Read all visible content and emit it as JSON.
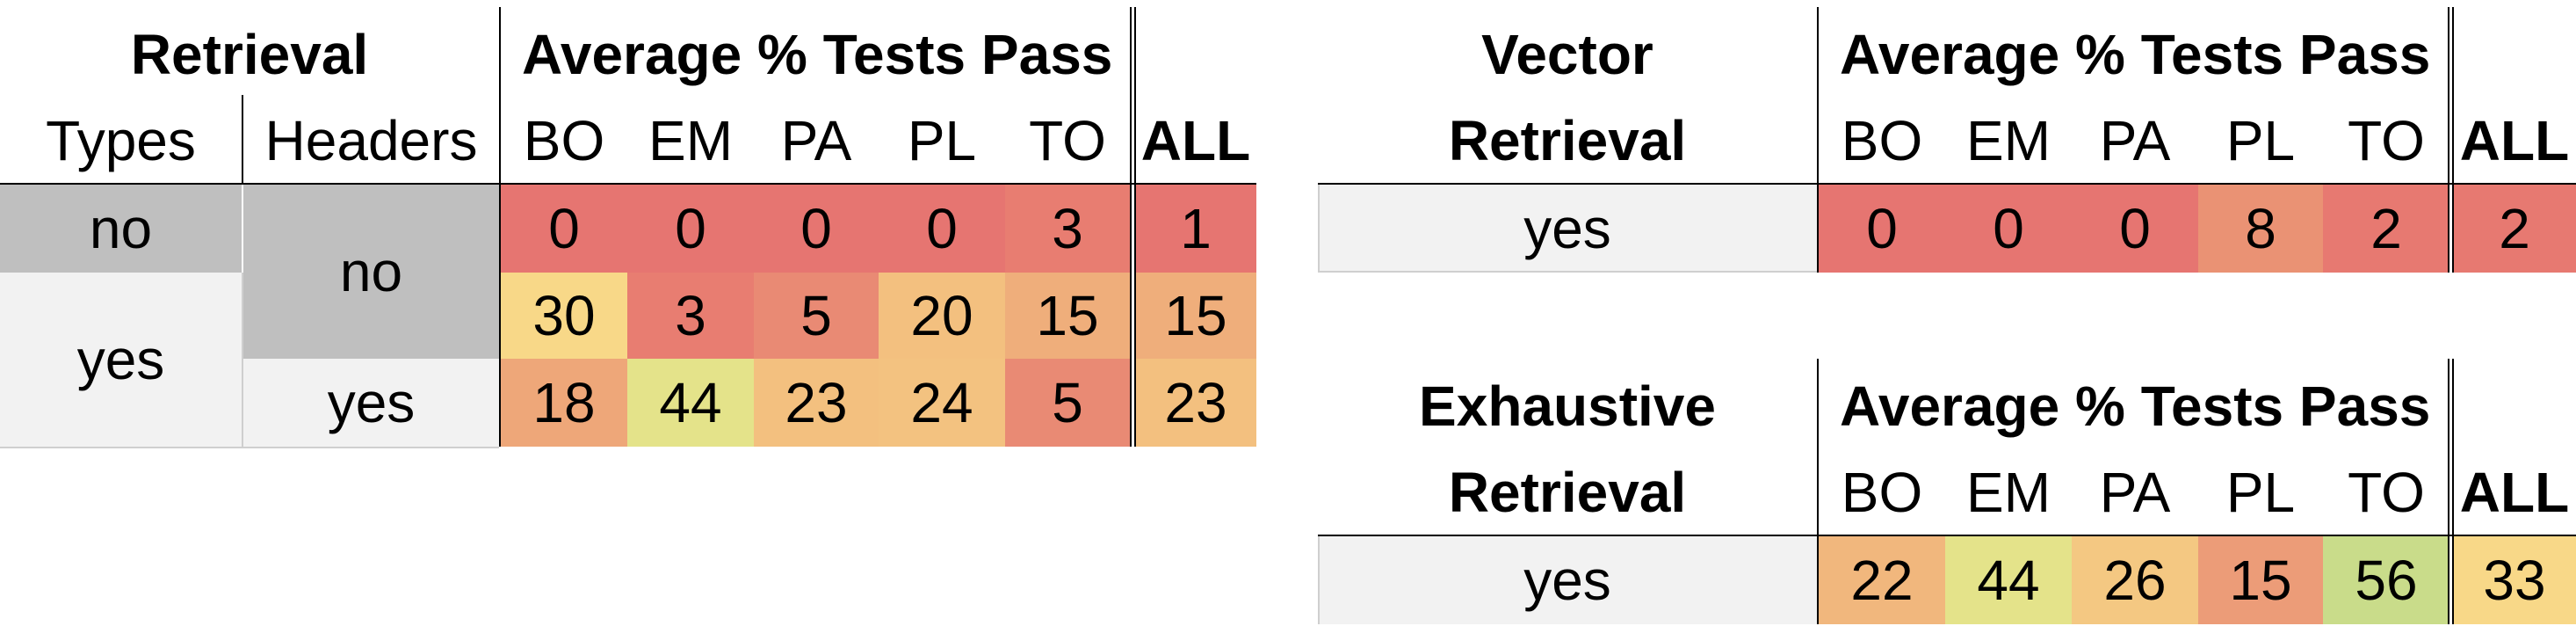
{
  "table1": {
    "group_header": "Retrieval",
    "metric_header": "Average % Tests Pass",
    "col_types": "Types",
    "col_headers": "Headers",
    "columns": [
      "BO",
      "EM",
      "PA",
      "PL",
      "TO"
    ],
    "col_all": "ALL",
    "rows": [
      {
        "types": "no",
        "headers": "no",
        "values": [
          "0",
          "0",
          "0",
          "0",
          "3"
        ],
        "all": "1"
      },
      {
        "types": "yes",
        "headers": "",
        "values": [
          "30",
          "3",
          "5",
          "20",
          "15"
        ],
        "all": "15"
      },
      {
        "types": "",
        "headers": "yes",
        "values": [
          "18",
          "44",
          "23",
          "24",
          "5"
        ],
        "all": "23"
      }
    ],
    "merged_labels": {
      "types_yes": "yes",
      "headers_no": "no"
    }
  },
  "table2": {
    "header_line1": "Vector",
    "header_line2": "Retrieval",
    "metric_header": "Average % Tests Pass",
    "columns": [
      "BO",
      "EM",
      "PA",
      "PL",
      "TO"
    ],
    "col_all": "ALL",
    "row": {
      "label": "yes",
      "values": [
        "0",
        "0",
        "0",
        "8",
        "2"
      ],
      "all": "2"
    }
  },
  "table3": {
    "header_line1": "Exhaustive",
    "header_line2": "Retrieval",
    "metric_header": "Average % Tests Pass",
    "columns": [
      "BO",
      "EM",
      "PA",
      "PL",
      "TO"
    ],
    "col_all": "ALL",
    "row": {
      "label": "yes",
      "values": [
        "22",
        "44",
        "26",
        "15",
        "56"
      ],
      "all": "33"
    }
  },
  "colors": {
    "red": "#E67571",
    "red_orange": "#E98A74",
    "orange": "#EC9C78",
    "orange_light": "#EFAE7B",
    "peach": "#F3C07F",
    "yellow_light": "#F8D888",
    "yellow": "#E4E38A",
    "green": "#C9DC8A",
    "gray_dark": "#BFBFBF",
    "gray_light": "#F2F2F2"
  }
}
